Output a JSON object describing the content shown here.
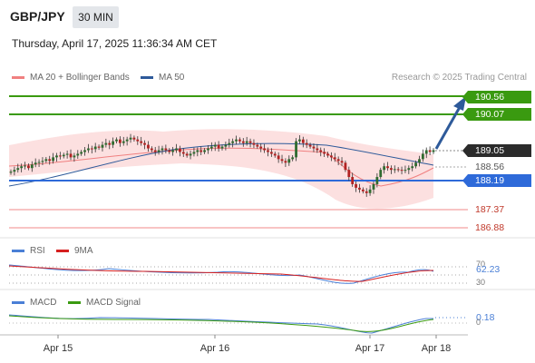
{
  "header": {
    "symbol": "GBP/JPY",
    "timeframe": "30 MIN",
    "timestamp": "Thursday, April 17, 2025 11:36:34 AM CET"
  },
  "legend": {
    "ma20_label": "MA 20 + Bollinger Bands",
    "ma50_label": "MA 50",
    "copyright": "Research © 2025 Trading Central",
    "colors": {
      "ma20": "#f08080",
      "ma50": "#2e5a9a"
    }
  },
  "price_levels": {
    "target_2": "190.56",
    "target_1": "190.07",
    "current": "189.05",
    "last_close": "188.56",
    "pivot": "188.19",
    "support_1": "187.37",
    "support_2": "186.88",
    "colors": {
      "target": "#3a9a10",
      "pivot": "#2e6ad9",
      "support": "#e05050",
      "current": "#2b2b2b"
    }
  },
  "rsi_panel": {
    "rsi_label": "RSI",
    "ma_label": "9MA",
    "value": "62.23",
    "tick_70": "70",
    "tick_50": "50",
    "tick_30": "30",
    "colors": {
      "rsi": "#4a7fd6",
      "ma": "#d62020"
    }
  },
  "macd_panel": {
    "macd_label": "MACD",
    "signal_label": "MACD Signal",
    "value": "0.18",
    "tick_0": "0",
    "colors": {
      "macd": "#4a7fd6",
      "signal": "#3a9a10"
    }
  },
  "x_axis": {
    "dates": [
      "Apr 15",
      "Apr 16",
      "Apr 17",
      "Apr 18"
    ]
  },
  "chart_data": {
    "type": "candlestick",
    "candle_closes": [
      188.45,
      188.5,
      188.55,
      188.6,
      188.62,
      188.55,
      188.65,
      188.7,
      188.72,
      188.75,
      188.8,
      188.75,
      188.85,
      188.9,
      188.88,
      188.92,
      188.95,
      188.85,
      188.9,
      188.95,
      189.0,
      189.05,
      189.1,
      189.08,
      189.15,
      189.12,
      189.2,
      189.25,
      189.2,
      189.3,
      189.35,
      189.25,
      189.3,
      189.35,
      189.4,
      189.35,
      189.3,
      189.25,
      189.2,
      189.1,
      189.05,
      189.0,
      189.05,
      189.1,
      189.05,
      189.0,
      189.05,
      189.1,
      189.0,
      188.95,
      188.9,
      188.95,
      189.0,
      189.05,
      189.0,
      189.05,
      189.1,
      189.15,
      189.2,
      189.1,
      189.15,
      189.2,
      189.25,
      189.3,
      189.35,
      189.3,
      189.25,
      189.3,
      189.25,
      189.2,
      189.15,
      189.1,
      189.05,
      189.0,
      188.95,
      188.9,
      188.8,
      188.75,
      188.7,
      188.8,
      188.85,
      189.3,
      189.35,
      189.25,
      189.2,
      189.15,
      189.1,
      189.05,
      189.0,
      188.95,
      188.9,
      188.85,
      188.8,
      188.75,
      188.7,
      188.5,
      188.3,
      188.1,
      188.0,
      187.95,
      187.9,
      187.85,
      187.95,
      188.1,
      188.3,
      188.5,
      188.6,
      188.55,
      188.5,
      188.52,
      188.5,
      188.48,
      188.5,
      188.55,
      188.6,
      188.7,
      188.8,
      188.95,
      189.05,
      189.0,
      189.05
    ],
    "price_levels": [
      190.56,
      190.07,
      189.05,
      188.56,
      188.19,
      187.37,
      186.88
    ]
  }
}
